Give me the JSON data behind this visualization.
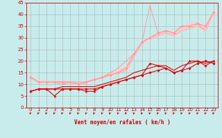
{
  "xlabel": "Vent moyen/en rafales ( km/h )",
  "bg_color": "#c8ecec",
  "grid_color": "#b0b0b0",
  "xlim": [
    -0.5,
    23.5
  ],
  "ylim": [
    0,
    45
  ],
  "yticks": [
    0,
    5,
    10,
    15,
    20,
    25,
    30,
    35,
    40,
    45
  ],
  "xticks": [
    0,
    1,
    2,
    3,
    4,
    5,
    6,
    7,
    8,
    9,
    10,
    11,
    12,
    13,
    14,
    15,
    16,
    17,
    18,
    19,
    20,
    21,
    22,
    23
  ],
  "series": [
    {
      "x": [
        0,
        1,
        2,
        3,
        4,
        5,
        6,
        7,
        8,
        9,
        10,
        11,
        12,
        13,
        14,
        15,
        16,
        17,
        18,
        19,
        20,
        21,
        22,
        23
      ],
      "y": [
        7,
        8,
        8,
        8,
        8,
        8,
        8,
        8,
        8,
        9,
        10,
        11,
        12,
        13,
        14,
        15,
        16,
        17,
        15,
        16,
        17,
        19,
        20,
        19
      ],
      "color": "#dd0000",
      "linewidth": 0.8,
      "marker": "D",
      "markersize": 1.8,
      "zorder": 4
    },
    {
      "x": [
        0,
        1,
        2,
        3,
        4,
        5,
        6,
        7,
        8,
        9,
        10,
        11,
        12,
        13,
        14,
        15,
        16,
        17,
        18,
        19,
        20,
        21,
        22,
        23
      ],
      "y": [
        7,
        8,
        8,
        5,
        8,
        8,
        8,
        7,
        7,
        9,
        10,
        11,
        12,
        13,
        14,
        19,
        18,
        17,
        15,
        16,
        20,
        20,
        18,
        20
      ],
      "color": "#dd0000",
      "linewidth": 0.8,
      "marker": "^",
      "markersize": 2.2,
      "zorder": 4
    },
    {
      "x": [
        0,
        1,
        2,
        3,
        4,
        5,
        6,
        7,
        8,
        9,
        10,
        11,
        12,
        13,
        14,
        15,
        16,
        17,
        18,
        19,
        20,
        21,
        22,
        23
      ],
      "y": [
        7,
        8,
        8,
        8,
        9,
        9,
        9,
        9,
        9,
        10,
        11,
        12,
        13,
        15,
        16,
        17,
        18,
        18,
        16,
        18,
        19,
        20,
        19,
        20
      ],
      "color": "#dd0000",
      "linewidth": 0.8,
      "marker": null,
      "markersize": 0,
      "zorder": 3
    },
    {
      "x": [
        0,
        1,
        2,
        3,
        4,
        5,
        6,
        7,
        8,
        9,
        10,
        11,
        12,
        13,
        14,
        15,
        16,
        17,
        18,
        19,
        20,
        21,
        22,
        23
      ],
      "y": [
        13,
        11,
        11,
        11,
        11,
        11,
        10,
        11,
        12,
        13,
        14,
        15,
        17,
        23,
        28,
        30,
        32,
        33,
        32,
        35,
        35,
        36,
        35,
        41
      ],
      "color": "#ff9999",
      "linewidth": 0.8,
      "marker": "D",
      "markersize": 1.8,
      "zorder": 3
    },
    {
      "x": [
        0,
        1,
        2,
        3,
        4,
        5,
        6,
        7,
        8,
        9,
        10,
        11,
        12,
        13,
        14,
        15,
        16,
        17,
        18,
        19,
        20,
        21,
        22,
        23
      ],
      "y": [
        13,
        11,
        11,
        11,
        10,
        11,
        11,
        11,
        12,
        13,
        15,
        17,
        20,
        23,
        28,
        44,
        32,
        33,
        32,
        35,
        35,
        36,
        33,
        41
      ],
      "color": "#ff9999",
      "linewidth": 0.7,
      "marker": null,
      "markersize": 0,
      "zorder": 2
    },
    {
      "x": [
        0,
        1,
        2,
        3,
        4,
        5,
        6,
        7,
        8,
        9,
        10,
        11,
        12,
        13,
        14,
        15,
        16,
        17,
        18,
        19,
        20,
        21,
        22,
        23
      ],
      "y": [
        13,
        11,
        11,
        11,
        11,
        11,
        10,
        11,
        12,
        13,
        14,
        15,
        16,
        22,
        28,
        30,
        31,
        32,
        31,
        33,
        34,
        35,
        33,
        41
      ],
      "color": "#ffbbbb",
      "linewidth": 1.5,
      "marker": null,
      "markersize": 0,
      "zorder": 2
    },
    {
      "x": [
        0,
        1,
        2,
        3,
        4,
        5,
        6,
        7,
        8,
        9,
        10,
        11,
        12,
        13,
        14,
        15,
        16,
        17,
        18,
        19,
        20,
        21,
        22,
        23
      ],
      "y": [
        13,
        11,
        11,
        11,
        11,
        11,
        10,
        11,
        12,
        13,
        14,
        16,
        17,
        23,
        28,
        30,
        31,
        33,
        32,
        34,
        36,
        36,
        34,
        41
      ],
      "color": "#ffcccc",
      "linewidth": 2.5,
      "marker": null,
      "markersize": 0,
      "zorder": 1
    }
  ]
}
